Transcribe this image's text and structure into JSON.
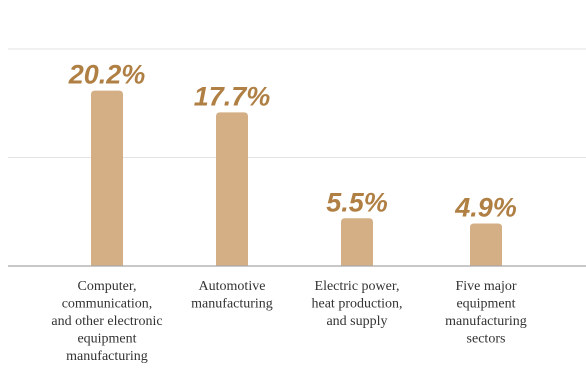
{
  "chart_data": {
    "type": "bar",
    "categories": [
      "Computer, communication, and other electronic equipment manufacturing",
      "Automotive manufacturing",
      "Electric power, heat production, and supply",
      "Five major equipment manufacturing sectors"
    ],
    "category_lines": [
      [
        "Computer,",
        "communication,",
        "and other electronic",
        "equipment",
        "manufacturing"
      ],
      [
        "Automotive",
        "manufacturing"
      ],
      [
        "Electric power,",
        "heat production,",
        "and supply"
      ],
      [
        "Five major",
        "equipment",
        "manufacturing",
        "sectors"
      ]
    ],
    "values": [
      20.2,
      17.7,
      5.5,
      4.9
    ],
    "data_labels": [
      "20.2%",
      "17.7%",
      "5.5%",
      "4.9%"
    ],
    "ylim": [
      0,
      25
    ],
    "grid": true,
    "legend": "none",
    "title": "",
    "xlabel": "",
    "ylabel": ""
  },
  "colors": {
    "bar": "#d4ae84",
    "label": "#b07f44",
    "grid": "#e3e3e3",
    "axis": "#a8a8a8",
    "text": "#333333"
  }
}
